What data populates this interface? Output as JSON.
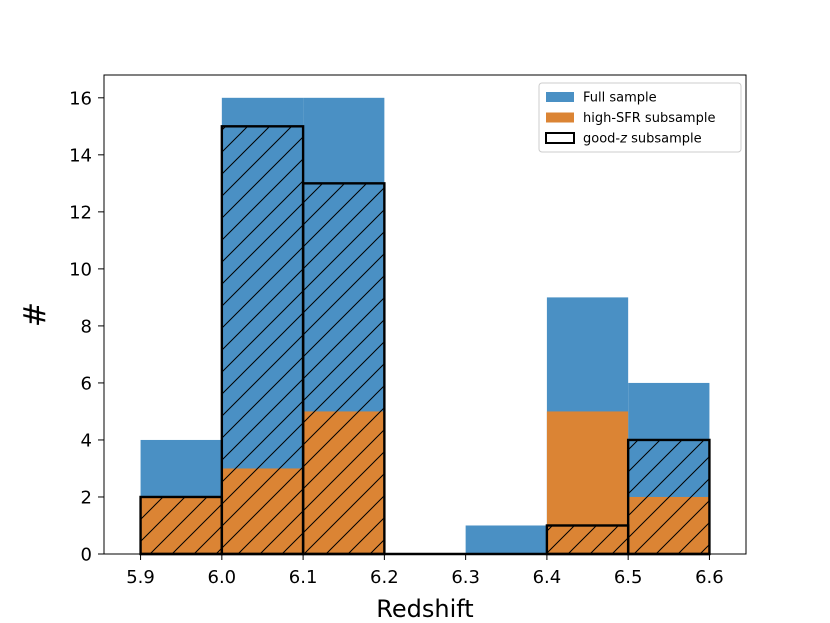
{
  "chart_data": {
    "type": "histogram",
    "bin_edges": [
      5.9,
      6.0,
      6.1,
      6.2,
      6.3,
      6.4,
      6.5,
      6.6
    ],
    "series": [
      {
        "name": "Full sample",
        "values": [
          4,
          16,
          16,
          0,
          1,
          9,
          6
        ],
        "color": "#4a90c4",
        "style": "filled"
      },
      {
        "name": "high-SFR subsample",
        "values": [
          2,
          3,
          5,
          0,
          0,
          5,
          2
        ],
        "color": "#db8434",
        "style": "filled"
      },
      {
        "name": "good-z subsample",
        "values": [
          2,
          15,
          13,
          0,
          0,
          1,
          4
        ],
        "color": "#000000",
        "style": "hatched-outline"
      }
    ],
    "legend": {
      "position": "top-right",
      "entries": [
        {
          "prefix": "Full sample",
          "italic": "",
          "suffix": ""
        },
        {
          "prefix": "high-SFR subsample",
          "italic": "",
          "suffix": ""
        },
        {
          "prefix": "good-",
          "italic": "z",
          "suffix": " subsample"
        }
      ]
    },
    "xlabel": "Redshift",
    "ylabel": "#",
    "xlim": [
      5.855,
      6.645
    ],
    "ylim": [
      0,
      16.8
    ],
    "xticks": [
      5.9,
      6.0,
      6.1,
      6.2,
      6.3,
      6.4,
      6.5,
      6.6
    ],
    "xtick_labels": [
      "5.9",
      "6.0",
      "6.1",
      "6.2",
      "6.3",
      "6.4",
      "6.5",
      "6.6"
    ],
    "yticks": [
      0,
      2,
      4,
      6,
      8,
      10,
      12,
      14,
      16
    ],
    "ytick_labels": [
      "0",
      "2",
      "4",
      "6",
      "8",
      "10",
      "12",
      "14",
      "16"
    ],
    "grid": false
  }
}
